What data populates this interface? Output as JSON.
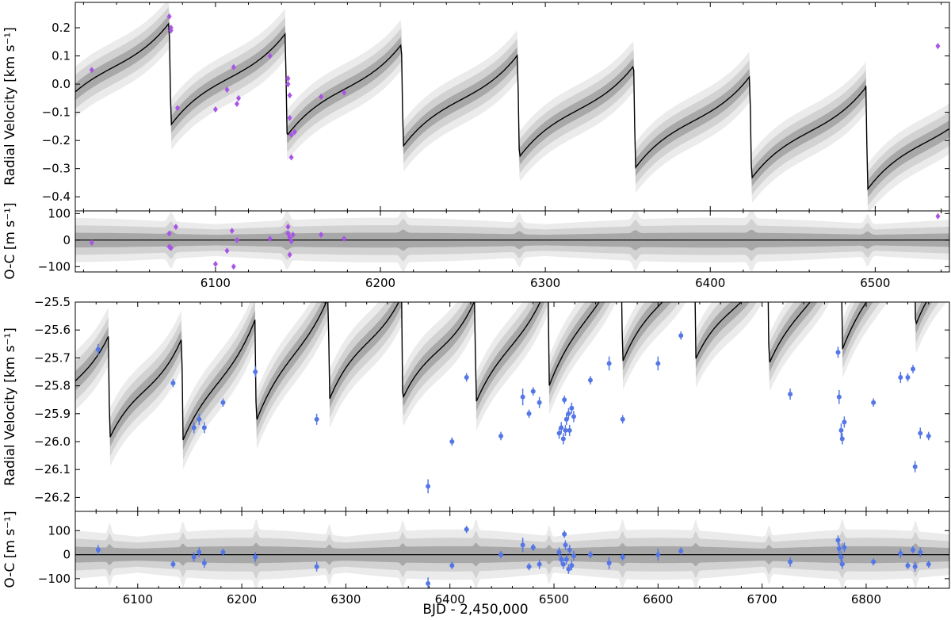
{
  "figure": {
    "xlabel": "BJD - 2,450,000",
    "colors": {
      "frame": "#000000",
      "model_line": "#000000",
      "band_outer": "#ebebeb",
      "band_mid": "#d2d2d2",
      "band_inner": "#a8a8a8",
      "star1_points": "#a855e6",
      "star2_points": "#5577e6"
    }
  },
  "chart_data": [
    {
      "type": "scatter",
      "panel": "top-rv",
      "ylabel": "Radial Velocity [km s⁻¹]",
      "xlim": [
        6015,
        6545
      ],
      "ylim": [
        -0.45,
        0.29
      ],
      "xticks": [
        6100,
        6200,
        6300,
        6400,
        6500
      ],
      "xtick_labels": [],
      "yticks": [
        -0.4,
        -0.3,
        -0.2,
        -0.1,
        0.0,
        0.1,
        0.2
      ],
      "ytick_labels": [
        "−0.4",
        "−0.3",
        "−0.2",
        "−0.1",
        "0.0",
        "0.1",
        "0.2"
      ],
      "model": {
        "period": 70.4,
        "t_drop": 6073,
        "v_peak": 0.225,
        "v_trough": -0.145,
        "slope": -0.00054,
        "ref_t": 6073,
        "band": 0.03
      },
      "series": [
        {
          "marker": "diamond",
          "color": "#a855e6",
          "x": [
            6025,
            6072,
            6073,
            6073,
            6077,
            6100,
            6107,
            6111,
            6113,
            6114,
            6133,
            6144,
            6144,
            6145,
            6145,
            6146,
            6146,
            6148,
            6164,
            6178,
            6538
          ],
          "y": [
            0.05,
            0.24,
            0.2,
            0.19,
            -0.085,
            -0.09,
            -0.02,
            0.06,
            -0.07,
            -0.05,
            0.1,
            0.02,
            0.0,
            -0.04,
            -0.12,
            -0.26,
            -0.18,
            -0.17,
            -0.045,
            -0.03,
            0.135
          ],
          "err": []
        }
      ]
    },
    {
      "type": "scatter",
      "panel": "top-residuals",
      "ylabel": "O-C [m s⁻¹]",
      "xlim": [
        6015,
        6545
      ],
      "ylim": [
        -120,
        110
      ],
      "xticks": [
        6100,
        6200,
        6300,
        6400,
        6500
      ],
      "xtick_labels": [
        "6100",
        "6200",
        "6300",
        "6400",
        "6500"
      ],
      "yticks": [
        -100,
        0,
        100
      ],
      "ytick_labels": [
        "−100",
        "0",
        "100"
      ],
      "model": {
        "band": 20
      },
      "series": [
        {
          "marker": "diamond",
          "color": "#a855e6",
          "x": [
            6025,
            6072,
            6072,
            6073,
            6076,
            6100,
            6107,
            6110,
            6111,
            6113,
            6133,
            6144,
            6144,
            6145,
            6145,
            6146,
            6147,
            6164,
            6178,
            6538
          ],
          "y": [
            -10,
            25,
            -25,
            -30,
            50,
            -90,
            -40,
            35,
            -100,
            0,
            5,
            50,
            25,
            10,
            -55,
            -5,
            20,
            20,
            5,
            90
          ],
          "err": []
        }
      ]
    },
    {
      "type": "scatter",
      "panel": "bottom-rv",
      "ylabel": "Radial Velocity [km s⁻¹]",
      "xlim": [
        6040,
        6880
      ],
      "ylim": [
        -26.25,
        -25.5
      ],
      "xticks": [
        6100,
        6200,
        6300,
        6400,
        6500,
        6600,
        6700,
        6800
      ],
      "xtick_labels": [],
      "yticks": [
        -26.2,
        -26.1,
        -26.0,
        -25.9,
        -25.8,
        -25.7,
        -25.6,
        -25.5
      ],
      "ytick_labels": [
        "−26.2",
        "−26.1",
        "−26.0",
        "−25.9",
        "−25.8",
        "−25.7",
        "−25.6",
        "−25.5"
      ],
      "model": {
        "period": 70.4,
        "t_drop": 6073,
        "v_peak": -25.615,
        "v_trough": -25.99,
        "slope": 0.00048,
        "ref_t": 6073,
        "band": 0.035,
        "wave_amp": 0.04,
        "wave_period": 290,
        "wave_phase": 6220
      },
      "series": [
        {
          "marker": "circle",
          "color": "#5577e6",
          "x": [
            6062,
            6134,
            6154,
            6159,
            6164,
            6182,
            6213,
            6272,
            6379,
            6402,
            6416,
            6449,
            6470,
            6476,
            6480,
            6486,
            6505,
            6507,
            6509,
            6510,
            6511,
            6512,
            6514,
            6515,
            6517,
            6519,
            6535,
            6553,
            6566,
            6600,
            6622,
            6727,
            6773,
            6774,
            6776,
            6777,
            6779,
            6807,
            6833,
            6840,
            6845,
            6847,
            6852,
            6860
          ],
          "y": [
            -25.67,
            -25.79,
            -25.95,
            -25.92,
            -25.95,
            -25.86,
            -25.75,
            -25.92,
            -26.16,
            -26.0,
            -25.77,
            -25.98,
            -25.84,
            -25.9,
            -25.82,
            -25.86,
            -25.97,
            -25.95,
            -25.99,
            -25.85,
            -25.96,
            -25.92,
            -25.9,
            -25.96,
            -25.88,
            -25.91,
            -25.78,
            -25.72,
            -25.92,
            -25.72,
            -25.62,
            -25.83,
            -25.68,
            -25.84,
            -25.96,
            -25.99,
            -25.93,
            -25.86,
            -25.77,
            -25.77,
            -25.74,
            -26.09,
            -25.97,
            -25.98
          ],
          "err": [
            0.02,
            0.015,
            0.02,
            0.02,
            0.02,
            0.015,
            0.02,
            0.02,
            0.025,
            0.015,
            0.015,
            0.015,
            0.03,
            0.015,
            0.015,
            0.02,
            0.02,
            0.02,
            0.02,
            0.015,
            0.02,
            0.02,
            0.02,
            0.02,
            0.02,
            0.02,
            0.015,
            0.025,
            0.015,
            0.025,
            0.015,
            0.02,
            0.02,
            0.025,
            0.025,
            0.02,
            0.02,
            0.015,
            0.02,
            0.015,
            0.015,
            0.02,
            0.02,
            0.015
          ]
        }
      ]
    },
    {
      "type": "scatter",
      "panel": "bottom-residuals",
      "ylabel": "O-C [m s⁻¹]",
      "xlim": [
        6040,
        6880
      ],
      "ylim": [
        -140,
        180
      ],
      "xticks": [
        6100,
        6200,
        6300,
        6400,
        6500,
        6600,
        6700,
        6800
      ],
      "xtick_labels": [
        "6100",
        "6200",
        "6300",
        "6400",
        "6500",
        "6600",
        "6700",
        "6800"
      ],
      "yticks": [
        -100,
        0,
        100
      ],
      "ytick_labels": [
        "−100",
        "0",
        "100"
      ],
      "model": {
        "band": 25
      },
      "series": [
        {
          "marker": "circle",
          "color": "#5577e6",
          "x": [
            6062,
            6134,
            6154,
            6159,
            6164,
            6182,
            6213,
            6272,
            6379,
            6402,
            6416,
            6449,
            6470,
            6476,
            6480,
            6486,
            6505,
            6507,
            6509,
            6510,
            6511,
            6512,
            6514,
            6515,
            6517,
            6519,
            6535,
            6553,
            6566,
            6600,
            6622,
            6727,
            6773,
            6774,
            6776,
            6777,
            6779,
            6807,
            6833,
            6840,
            6845,
            6847,
            6852,
            6860
          ],
          "y": [
            20,
            -40,
            -10,
            10,
            -35,
            10,
            -10,
            -50,
            -120,
            -45,
            105,
            0,
            40,
            -50,
            30,
            -40,
            10,
            -20,
            -40,
            85,
            40,
            -20,
            -60,
            20,
            -45,
            -5,
            0,
            -35,
            -10,
            0,
            15,
            -30,
            60,
            25,
            -10,
            -40,
            30,
            -30,
            5,
            -45,
            20,
            -50,
            10,
            -40
          ],
          "err": [
            20,
            15,
            20,
            20,
            20,
            15,
            20,
            20,
            25,
            15,
            15,
            15,
            30,
            15,
            15,
            20,
            20,
            20,
            20,
            15,
            20,
            20,
            20,
            20,
            20,
            20,
            15,
            25,
            15,
            25,
            15,
            20,
            20,
            25,
            25,
            20,
            20,
            15,
            20,
            15,
            15,
            20,
            20,
            15
          ]
        }
      ]
    }
  ]
}
